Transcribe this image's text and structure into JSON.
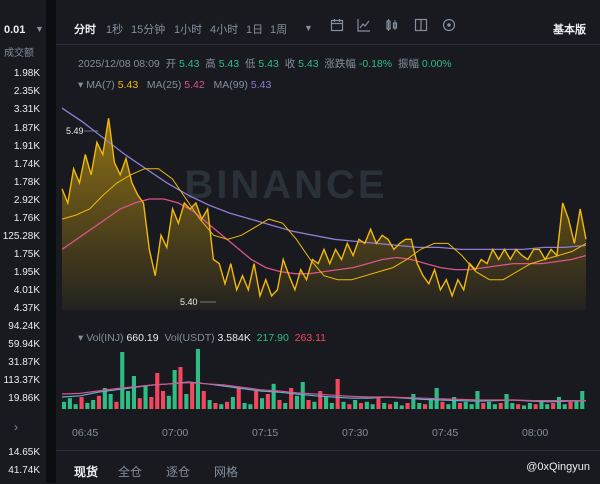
{
  "sidebar": {
    "pair_value": "0.01",
    "header": "成交额",
    "volumes": [
      "1.98K",
      "2.35K",
      "3.31K",
      "1.87K",
      "1.91K",
      "1.74K",
      "1.78K",
      "2.92K",
      "1.76K",
      "125.28K",
      "1.75K",
      "1.95K",
      "4.01K",
      "4.37K",
      "94.24K",
      "59.94K",
      "31.87K",
      "113.37K",
      "19.86K",
      "14.65K",
      "41.74K"
    ]
  },
  "toolbar": {
    "items": [
      "分时",
      "1秒",
      "15分钟",
      "1小时",
      "4小时",
      "1日",
      "1周"
    ],
    "active": "分时",
    "basic_version": "基本版"
  },
  "ohlc": {
    "datetime": "2025/12/08 08:09",
    "open_label": "开",
    "open": "5.43",
    "high_label": "高",
    "high": "5.43",
    "low_label": "低",
    "low": "5.43",
    "close_label": "收",
    "close": "5.43",
    "change_label": "涨跌幅",
    "change": "-0.18%",
    "amplitude_label": "振幅",
    "amplitude": "0.00%"
  },
  "ma_legend": {
    "ma7_label": "MA(7)",
    "ma7": "5.43",
    "ma25_label": "MA(25)",
    "ma25": "5.42",
    "ma99_label": "MA(99)",
    "ma99": "5.43"
  },
  "vol_legend": {
    "vol_inj_label": "Vol(INJ)",
    "vol_inj": "660.19",
    "vol_usdt_label": "Vol(USDT)",
    "vol_usdt": "3.584K",
    "ma_a": "217.90",
    "ma_b": "263.11"
  },
  "price_marks": {
    "high": "5.49",
    "low": "5.40"
  },
  "watermark_text": "BINANCE",
  "time_axis": [
    "06:45",
    "07:00",
    "07:15",
    "07:30",
    "07:45",
    "08:00"
  ],
  "bottom_tabs": [
    "现货",
    "全仓",
    "逐仓",
    "网格"
  ],
  "active_bottom_tab": "现货",
  "credit": "@0xQingyun",
  "colors": {
    "up": "#2ebd85",
    "down": "#f6465d",
    "price_line": "#f0b90b",
    "ma25": "#d9548a",
    "ma99": "#8e7bd6"
  },
  "chart_data": {
    "type": "area",
    "price_series": [
      5.455,
      5.448,
      5.465,
      5.458,
      5.472,
      5.462,
      5.478,
      5.472,
      5.49,
      5.468,
      5.462,
      5.47,
      5.458,
      5.452,
      5.448,
      5.425,
      5.412,
      5.432,
      5.426,
      5.445,
      5.438,
      5.448,
      5.445,
      5.448,
      5.44,
      5.445,
      5.42,
      5.418,
      5.408,
      5.418,
      5.405,
      5.412,
      5.405,
      5.418,
      5.402,
      5.41,
      5.402,
      5.405,
      5.42,
      5.412,
      5.405,
      5.415,
      5.41,
      5.42,
      5.418,
      5.425,
      5.418,
      5.425,
      5.42,
      5.428,
      5.422,
      5.43,
      5.428,
      5.435,
      5.428,
      5.432,
      5.43,
      5.425,
      5.428,
      5.43,
      5.43,
      5.418,
      5.412,
      5.408,
      5.415,
      5.405,
      5.41,
      5.402,
      5.41,
      5.405,
      5.418,
      5.415,
      5.42,
      5.418,
      5.425,
      5.42,
      5.425,
      5.42,
      5.425,
      5.422,
      5.42,
      5.425,
      5.425,
      5.42,
      5.425,
      5.422,
      5.448,
      5.44,
      5.428,
      5.445,
      5.43
    ],
    "ma7": [
      5.44,
      5.442,
      5.445,
      5.452,
      5.458,
      5.462,
      5.465,
      5.465,
      5.46,
      5.45,
      5.44,
      5.432,
      5.43,
      5.432,
      5.436,
      5.44,
      5.438,
      5.43,
      5.42,
      5.412,
      5.41,
      5.41,
      5.412,
      5.414,
      5.416,
      5.42,
      5.425,
      5.428,
      5.428,
      5.422,
      5.414,
      5.41,
      5.41,
      5.414,
      5.418,
      5.42,
      5.422,
      5.424,
      5.428
    ],
    "ma25": [
      5.425,
      5.43,
      5.435,
      5.44,
      5.445,
      5.448,
      5.45,
      5.45,
      5.448,
      5.444,
      5.438,
      5.432,
      5.426,
      5.42,
      5.416,
      5.414,
      5.413,
      5.413,
      5.414,
      5.415,
      5.416,
      5.418,
      5.42,
      5.421,
      5.42,
      5.418,
      5.416,
      5.415,
      5.415,
      5.416,
      5.417,
      5.418,
      5.418,
      5.418,
      5.419,
      5.42,
      5.422
    ],
    "ma99": [
      5.495,
      5.488,
      5.48,
      5.472,
      5.465,
      5.458,
      5.452,
      5.447,
      5.443,
      5.44,
      5.437,
      5.434,
      5.432,
      5.43,
      5.429,
      5.428,
      5.427,
      5.426,
      5.426,
      5.425,
      5.425,
      5.425,
      5.425,
      5.426,
      5.426,
      5.427
    ],
    "volume_bars": [
      {
        "v": 0.12,
        "d": "up"
      },
      {
        "v": 0.18,
        "d": "up"
      },
      {
        "v": 0.08,
        "d": "up"
      },
      {
        "v": 0.2,
        "d": "down"
      },
      {
        "v": 0.1,
        "d": "up"
      },
      {
        "v": 0.15,
        "d": "up"
      },
      {
        "v": 0.22,
        "d": "down"
      },
      {
        "v": 0.35,
        "d": "up"
      },
      {
        "v": 0.25,
        "d": "up"
      },
      {
        "v": 0.12,
        "d": "down"
      },
      {
        "v": 0.95,
        "d": "up"
      },
      {
        "v": 0.3,
        "d": "up"
      },
      {
        "v": 0.55,
        "d": "up"
      },
      {
        "v": 0.18,
        "d": "down"
      },
      {
        "v": 0.4,
        "d": "up"
      },
      {
        "v": 0.2,
        "d": "down"
      },
      {
        "v": 0.6,
        "d": "down"
      },
      {
        "v": 0.3,
        "d": "down"
      },
      {
        "v": 0.22,
        "d": "up"
      },
      {
        "v": 0.65,
        "d": "up"
      },
      {
        "v": 0.7,
        "d": "down"
      },
      {
        "v": 0.25,
        "d": "up"
      },
      {
        "v": 0.45,
        "d": "down"
      },
      {
        "v": 1.0,
        "d": "up"
      },
      {
        "v": 0.3,
        "d": "down"
      },
      {
        "v": 0.15,
        "d": "up"
      },
      {
        "v": 0.1,
        "d": "down"
      },
      {
        "v": 0.08,
        "d": "up"
      },
      {
        "v": 0.12,
        "d": "down"
      },
      {
        "v": 0.2,
        "d": "up"
      },
      {
        "v": 0.35,
        "d": "down"
      },
      {
        "v": 0.1,
        "d": "up"
      },
      {
        "v": 0.08,
        "d": "up"
      },
      {
        "v": 0.3,
        "d": "down"
      },
      {
        "v": 0.18,
        "d": "up"
      },
      {
        "v": 0.25,
        "d": "down"
      },
      {
        "v": 0.42,
        "d": "up"
      },
      {
        "v": 0.15,
        "d": "down"
      },
      {
        "v": 0.1,
        "d": "up"
      },
      {
        "v": 0.35,
        "d": "down"
      },
      {
        "v": 0.22,
        "d": "up"
      },
      {
        "v": 0.45,
        "d": "up"
      },
      {
        "v": 0.15,
        "d": "down"
      },
      {
        "v": 0.12,
        "d": "up"
      },
      {
        "v": 0.3,
        "d": "down"
      },
      {
        "v": 0.2,
        "d": "up"
      },
      {
        "v": 0.1,
        "d": "up"
      },
      {
        "v": 0.5,
        "d": "down"
      },
      {
        "v": 0.12,
        "d": "up"
      },
      {
        "v": 0.08,
        "d": "down"
      },
      {
        "v": 0.15,
        "d": "up"
      },
      {
        "v": 0.1,
        "d": "down"
      },
      {
        "v": 0.12,
        "d": "up"
      },
      {
        "v": 0.08,
        "d": "up"
      },
      {
        "v": 0.18,
        "d": "down"
      },
      {
        "v": 0.1,
        "d": "up"
      },
      {
        "v": 0.08,
        "d": "down"
      },
      {
        "v": 0.12,
        "d": "up"
      },
      {
        "v": 0.06,
        "d": "up"
      },
      {
        "v": 0.1,
        "d": "down"
      },
      {
        "v": 0.25,
        "d": "up"
      },
      {
        "v": 0.1,
        "d": "up"
      },
      {
        "v": 0.08,
        "d": "down"
      },
      {
        "v": 0.15,
        "d": "up"
      },
      {
        "v": 0.35,
        "d": "up"
      },
      {
        "v": 0.12,
        "d": "down"
      },
      {
        "v": 0.08,
        "d": "up"
      },
      {
        "v": 0.2,
        "d": "up"
      },
      {
        "v": 0.1,
        "d": "down"
      },
      {
        "v": 0.12,
        "d": "up"
      },
      {
        "v": 0.08,
        "d": "up"
      },
      {
        "v": 0.3,
        "d": "up"
      },
      {
        "v": 0.1,
        "d": "down"
      },
      {
        "v": 0.12,
        "d": "up"
      },
      {
        "v": 0.08,
        "d": "up"
      },
      {
        "v": 0.1,
        "d": "down"
      },
      {
        "v": 0.25,
        "d": "up"
      },
      {
        "v": 0.1,
        "d": "up"
      },
      {
        "v": 0.08,
        "d": "down"
      },
      {
        "v": 0.06,
        "d": "up"
      },
      {
        "v": 0.1,
        "d": "up"
      },
      {
        "v": 0.08,
        "d": "down"
      },
      {
        "v": 0.12,
        "d": "up"
      },
      {
        "v": 0.08,
        "d": "up"
      },
      {
        "v": 0.1,
        "d": "down"
      },
      {
        "v": 0.2,
        "d": "up"
      },
      {
        "v": 0.08,
        "d": "up"
      },
      {
        "v": 0.12,
        "d": "down"
      },
      {
        "v": 0.15,
        "d": "up"
      },
      {
        "v": 0.3,
        "d": "up"
      }
    ],
    "vol_ma_a": [
      0.2,
      0.22,
      0.28,
      0.32,
      0.36,
      0.4,
      0.42,
      0.45,
      0.42,
      0.38,
      0.34,
      0.3,
      0.28,
      0.25,
      0.22,
      0.2,
      0.18,
      0.18,
      0.2,
      0.18,
      0.16,
      0.15,
      0.14,
      0.13,
      0.14,
      0.15,
      0.13,
      0.12,
      0.13,
      0.14
    ],
    "vol_ma_b": [
      0.25,
      0.26,
      0.3,
      0.34,
      0.37,
      0.4,
      0.42,
      0.44,
      0.42,
      0.4,
      0.36,
      0.32,
      0.3,
      0.27,
      0.25,
      0.23,
      0.21,
      0.2,
      0.2,
      0.19,
      0.18,
      0.17,
      0.16,
      0.15,
      0.15,
      0.15,
      0.14,
      0.14,
      0.14,
      0.14
    ]
  }
}
